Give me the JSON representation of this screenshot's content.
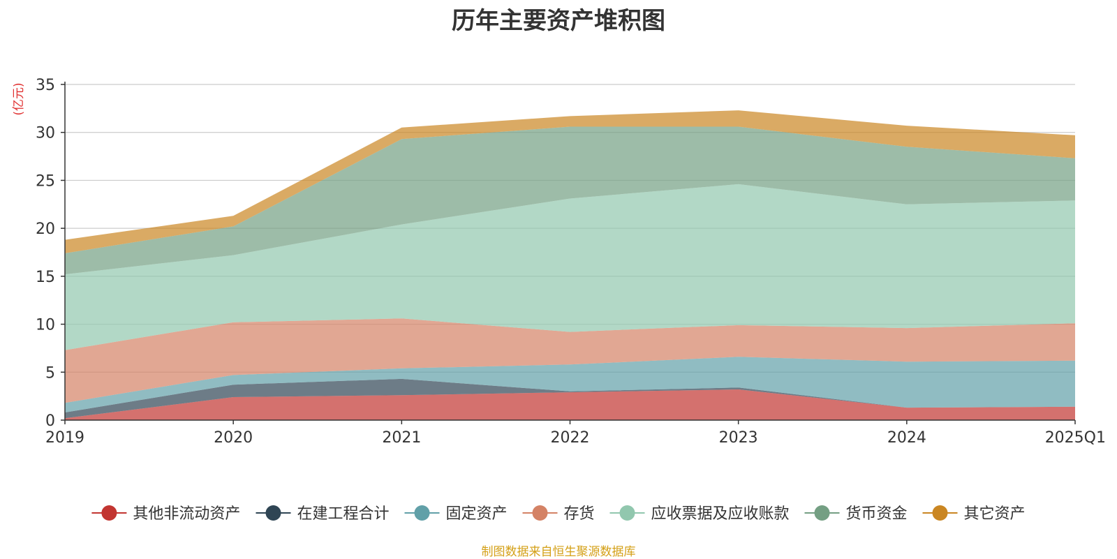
{
  "chart_data": {
    "type": "area",
    "title": "历年主要资产堆积图",
    "unit": "(亿元)",
    "categories": [
      "2019",
      "2020",
      "2021",
      "2022",
      "2023",
      "2024",
      "2025Q1"
    ],
    "ylim": [
      0,
      35
    ],
    "yticks": [
      0,
      5,
      10,
      15,
      20,
      25,
      30,
      35
    ],
    "stacked": true,
    "grid": true,
    "legend_position": "bottom",
    "series": [
      {
        "name": "其他非流动资产",
        "color": "#c23531",
        "values": [
          0.2,
          2.4,
          2.6,
          2.9,
          3.2,
          1.3,
          1.4
        ]
      },
      {
        "name": "在建工程合计",
        "color": "#2f4554",
        "values": [
          0.6,
          1.3,
          1.7,
          0.1,
          0.2,
          0.0,
          0.0
        ]
      },
      {
        "name": "固定资产",
        "color": "#61a0a8",
        "values": [
          1.0,
          1.0,
          1.1,
          2.8,
          3.2,
          4.8,
          4.8
        ]
      },
      {
        "name": "存货",
        "color": "#d48265",
        "values": [
          5.5,
          5.5,
          5.2,
          3.4,
          3.3,
          3.5,
          3.9
        ]
      },
      {
        "name": "应收票据及应收账款",
        "color": "#91c7ae",
        "values": [
          7.9,
          7.0,
          9.8,
          13.9,
          14.7,
          12.9,
          12.8
        ]
      },
      {
        "name": "货币资金",
        "color": "#749f83",
        "values": [
          2.2,
          3.0,
          8.9,
          7.5,
          6.0,
          6.0,
          4.4
        ]
      },
      {
        "name": "其它资产",
        "color": "#ca8622",
        "values": [
          1.4,
          1.1,
          1.2,
          1.1,
          1.7,
          2.2,
          2.4
        ]
      }
    ],
    "source": "制图数据来自恒生聚源数据库"
  }
}
